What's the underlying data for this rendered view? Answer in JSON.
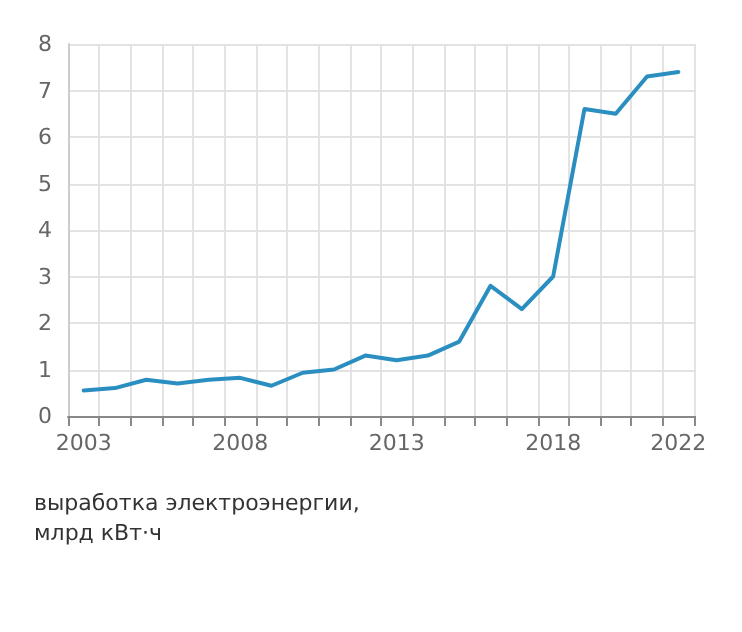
{
  "chart_data": {
    "type": "line",
    "categories": [
      "2003",
      null,
      null,
      null,
      null,
      "2008",
      null,
      null,
      null,
      null,
      "2013",
      null,
      null,
      null,
      null,
      "2018",
      null,
      null,
      null,
      "2022"
    ],
    "series": [
      {
        "color": "#2a8fc0",
        "values": [
          0.55,
          0.6,
          0.78,
          0.7,
          0.78,
          0.82,
          0.65,
          0.93,
          1.0,
          1.3,
          1.2,
          1.3,
          1.6,
          2.8,
          2.3,
          3.0,
          6.6,
          6.5,
          7.3,
          7.4
        ]
      }
    ],
    "ylim": [
      0,
      8
    ],
    "yticks": [
      0,
      1,
      2,
      3,
      4,
      5,
      6,
      7,
      8
    ],
    "grid": true,
    "marker": "none",
    "line_style": "solid",
    "annotations": [
      "выработка электроэнергии,\nмлрд кВт·ч"
    ]
  }
}
